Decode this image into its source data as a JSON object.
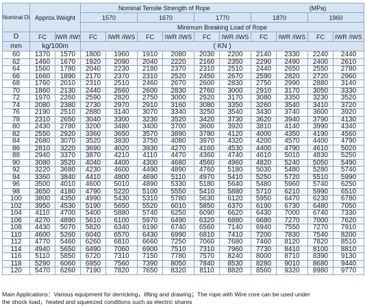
{
  "header": {
    "nominal_diameter": "Nominal Diameter",
    "approx_weight": "Approx.Weight",
    "tensile_title": "Nominal Tensile Strength of Rope",
    "tensile_unit": "(MPa)",
    "grades": [
      "1570",
      "1670",
      "1770",
      "1870",
      "1960"
    ],
    "min_breaking": "Minimum Breaking Load of Rope",
    "fc": "FC",
    "iwr": "IWR /IWS",
    "d": "D",
    "mm": "mm",
    "weight_unit": "kg/100m",
    "load_unit": "( KN )"
  },
  "rows": [
    [
      "60",
      "1370",
      "1570",
      "1800",
      "1960",
      "1910",
      "2080",
      "2030",
      "2200",
      "2140",
      "2330",
      "2240",
      "2440"
    ],
    [
      "62",
      "1460",
      "1670",
      "1920",
      "2090",
      "2040",
      "2220",
      "2160",
      "2350",
      "2290",
      "2490",
      "2400",
      "2610"
    ],
    [
      "64",
      "1560",
      "1780",
      "2040",
      "2230",
      "2180",
      "2370",
      "2310",
      "2510",
      "2440",
      "2650",
      "2550",
      "2780"
    ],
    [
      "66",
      "1660",
      "1890",
      "2170",
      "2370",
      "2310",
      "2520",
      "2450",
      "2670",
      "2590",
      "2820",
      "2720",
      "2960"
    ],
    [
      "68",
      "1760",
      "2010",
      "2310",
      "2510",
      "2460",
      "2670",
      "2600",
      "2830",
      "2750",
      "2990",
      "2880",
      "3140"
    ],
    [
      "70",
      "1860",
      "2130",
      "2440",
      "2660",
      "2600",
      "2830",
      "2760",
      "3000",
      "2910",
      "3170",
      "3050",
      "3330"
    ],
    [
      "72",
      "1970",
      "2260",
      "2590",
      "2820",
      "2750",
      "3000",
      "2920",
      "3170",
      "3080",
      "3350",
      "3230",
      "3520"
    ],
    [
      "74",
      "2080",
      "2380",
      "2730",
      "2970",
      "2910",
      "3160",
      "3080",
      "3350",
      "3260",
      "3540",
      "3410",
      "3720"
    ],
    [
      "76",
      "2190",
      "2510",
      "2880",
      "3140",
      "3070",
      "3340",
      "3250",
      "3540",
      "3430",
      "3740",
      "3600",
      "3920"
    ],
    [
      "78",
      "2310",
      "2650",
      "3040",
      "3300",
      "3230",
      "3520",
      "3420",
      "3730",
      "3620",
      "3940",
      "3790",
      "4130"
    ],
    [
      "80",
      "2430",
      "2780",
      "3200",
      "3480",
      "3400",
      "3700",
      "3600",
      "3920",
      "3810",
      "4140",
      "3990",
      "4340"
    ],
    [
      "82",
      "2550",
      "2920",
      "3360",
      "3650",
      "3570",
      "3890",
      "3780",
      "4120",
      "4000",
      "4350",
      "4190",
      "4560"
    ],
    [
      "84",
      "2680",
      "3070",
      "3520",
      "3830",
      "3750",
      "4080",
      "3970",
      "4320",
      "4200",
      "4570",
      "4400",
      "4790"
    ],
    [
      "86",
      "2810",
      "3220",
      "3690",
      "4020",
      "3930",
      "4270",
      "4160",
      "4530",
      "4400",
      "4790",
      "4610",
      "5020"
    ],
    [
      "88",
      "2940",
      "3370",
      "3870",
      "4210",
      "4110",
      "4470",
      "4360",
      "4740",
      "4610",
      "5010",
      "4830",
      "5250"
    ],
    [
      "90",
      "3080",
      "3520",
      "4040",
      "4400",
      "4300",
      "4680",
      "4560",
      "4960",
      "4820",
      "5240",
      "5050",
      "5490"
    ],
    [
      "92",
      "3220",
      "3680",
      "4230",
      "4600",
      "4490",
      "4890",
      "4760",
      "5180",
      "5030",
      "5480",
      "5280",
      "5740"
    ],
    [
      "94",
      "3360",
      "3840",
      "4410",
      "4800",
      "4690",
      "5110",
      "4970",
      "5410",
      "5250",
      "5720",
      "5510",
      "5990"
    ],
    [
      "96",
      "3500",
      "4010",
      "4600",
      "5010",
      "4890",
      "5330",
      "5180",
      "5640",
      "5480",
      "5960",
      "5740",
      "6250"
    ],
    [
      "98",
      "3650",
      "4180",
      "4790",
      "5220",
      "5100",
      "5550",
      "5410",
      "5880",
      "5710",
      "6210",
      "5990",
      "6510"
    ],
    [
      "100",
      "3800",
      "4350",
      "4990",
      "5430",
      "5310",
      "5780",
      "5630",
      "6120",
      "5950",
      "6470",
      "6230",
      "6780"
    ],
    [
      "102",
      "3950",
      "4530",
      "5190",
      "5650",
      "5520",
      "6010",
      "5850",
      "6370",
      "6190",
      "6730",
      "6480",
      "7050"
    ],
    [
      "104",
      "4110",
      "4700",
      "5400",
      "5880",
      "5740",
      "6250",
      "6090",
      "6620",
      "6430",
      "7000",
      "6740",
      "7330"
    ],
    [
      "106",
      "4270",
      "4890",
      "5610",
      "6100",
      "5970",
      "6490",
      "6320",
      "6880",
      "6680",
      "7270",
      "7000",
      "7620"
    ],
    [
      "108",
      "4430",
      "5070",
      "5820",
      "6340",
      "6190",
      "6740",
      "6560",
      "7140",
      "6940",
      "7550",
      "7270",
      "7910"
    ],
    [
      "110",
      "4600",
      "5260",
      "6040",
      "6570",
      "6430",
      "6990",
      "6810",
      "7410",
      "7200",
      "7830",
      "7540",
      "8200"
    ],
    [
      "112",
      "4770",
      "5460",
      "6260",
      "6810",
      "6660",
      "7250",
      "7060",
      "7680",
      "7460",
      "8120",
      "7820",
      "8510"
    ],
    [
      "114",
      "4940",
      "5650",
      "6490",
      "7060",
      "6900",
      "7510",
      "7310",
      "7960",
      "7730",
      "8410",
      "8100",
      "8810"
    ],
    [
      "116",
      "5110",
      "5850",
      "6720",
      "7310",
      "7150",
      "7780",
      "7570",
      "8240",
      "8000",
      "8710",
      "8390",
      "9130"
    ],
    [
      "118",
      "5290",
      "6060",
      "6950",
      "7560",
      "7390",
      "8050",
      "7840",
      "8530",
      "8280",
      "9010",
      "8680",
      "9440"
    ],
    [
      "120",
      "5470",
      "6260",
      "7190",
      "7820",
      "7650",
      "8320",
      "8110",
      "8820",
      "8560",
      "9320",
      "8980",
      "9770"
    ]
  ],
  "note": {
    "line1": "Main Applications：Various equipment for derricking，lifting and drawing；The rope with Wire core can be used under",
    "line2": "the shock load，heated and squeezed conditions such as electric shares"
  }
}
